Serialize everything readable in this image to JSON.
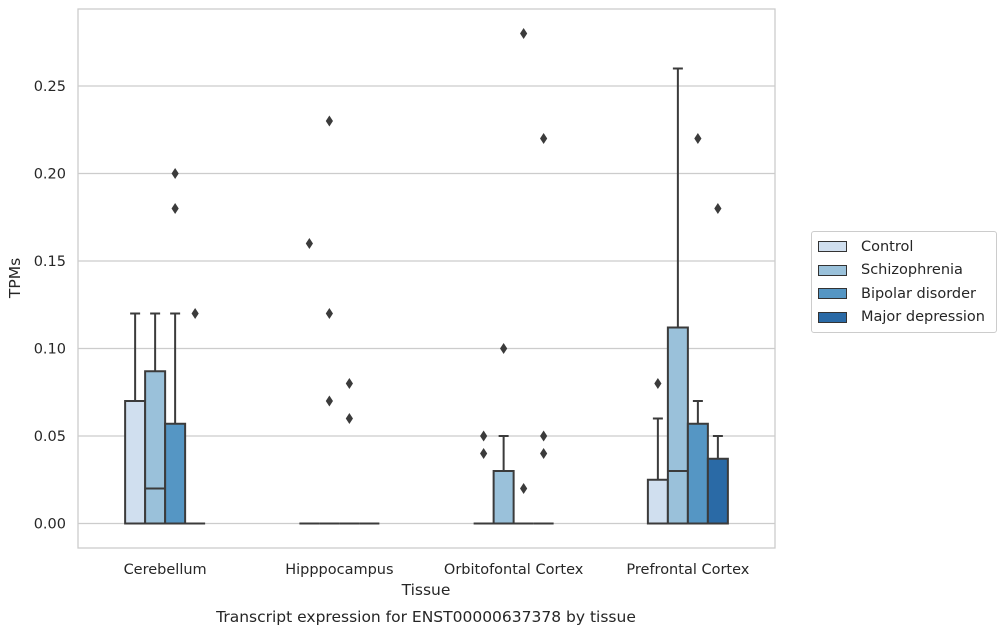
{
  "chart_data": {
    "type": "box",
    "caption": "Transcript expression for ENST00000637378 by tissue",
    "xlabel": "Tissue",
    "ylabel": "TPMs",
    "ylim": [
      -0.014,
      0.294
    ],
    "yticks": [
      0.0,
      0.05,
      0.1,
      0.15,
      0.2,
      0.25
    ],
    "ytick_labels": [
      "0.00",
      "0.05",
      "0.10",
      "0.15",
      "0.20",
      "0.25"
    ],
    "grid": true,
    "legend_position": "right",
    "categories": [
      "Cerebellum",
      "Hipppocampus",
      "Orbitofontal Cortex",
      "Prefrontal Cortex"
    ],
    "series": [
      {
        "name": "Control",
        "color": "#d0dfef",
        "boxes": [
          {
            "q1": 0.0,
            "median": 0.0,
            "q3": 0.07,
            "whisker_low": 0.0,
            "whisker_high": 0.12,
            "outliers": []
          },
          {
            "q1": 0.0,
            "median": 0.0,
            "q3": 0.0,
            "whisker_low": 0.0,
            "whisker_high": 0.0,
            "outliers": [
              0.16
            ]
          },
          {
            "q1": 0.0,
            "median": 0.0,
            "q3": 0.0,
            "whisker_low": 0.0,
            "whisker_high": 0.0,
            "outliers": [
              0.05,
              0.04
            ]
          },
          {
            "q1": 0.0,
            "median": 0.0,
            "q3": 0.025,
            "whisker_low": 0.0,
            "whisker_high": 0.06,
            "outliers": [
              0.08
            ]
          }
        ]
      },
      {
        "name": "Schizophrenia",
        "color": "#9ac1da",
        "boxes": [
          {
            "q1": 0.0,
            "median": 0.02,
            "q3": 0.087,
            "whisker_low": 0.0,
            "whisker_high": 0.12,
            "outliers": []
          },
          {
            "q1": 0.0,
            "median": 0.0,
            "q3": 0.0,
            "whisker_low": 0.0,
            "whisker_high": 0.0,
            "outliers": [
              0.23,
              0.12,
              0.07
            ]
          },
          {
            "q1": 0.0,
            "median": 0.0,
            "q3": 0.03,
            "whisker_low": 0.0,
            "whisker_high": 0.05,
            "outliers": [
              0.1
            ]
          },
          {
            "q1": 0.0,
            "median": 0.03,
            "q3": 0.112,
            "whisker_low": 0.0,
            "whisker_high": 0.26,
            "outliers": []
          }
        ]
      },
      {
        "name": "Bipolar disorder",
        "color": "#5596c4",
        "boxes": [
          {
            "q1": 0.0,
            "median": 0.0,
            "q3": 0.057,
            "whisker_low": 0.0,
            "whisker_high": 0.12,
            "outliers": [
              0.2,
              0.18
            ]
          },
          {
            "q1": 0.0,
            "median": 0.0,
            "q3": 0.0,
            "whisker_low": 0.0,
            "whisker_high": 0.0,
            "outliers": [
              0.08,
              0.06
            ]
          },
          {
            "q1": 0.0,
            "median": 0.0,
            "q3": 0.0,
            "whisker_low": 0.0,
            "whisker_high": 0.0,
            "outliers": [
              0.28,
              0.02
            ]
          },
          {
            "q1": 0.0,
            "median": 0.0,
            "q3": 0.057,
            "whisker_low": 0.0,
            "whisker_high": 0.07,
            "outliers": [
              0.22
            ]
          }
        ]
      },
      {
        "name": "Major depression",
        "color": "#2a6aa6",
        "boxes": [
          {
            "q1": 0.0,
            "median": 0.0,
            "q3": 0.0,
            "whisker_low": 0.0,
            "whisker_high": 0.0,
            "outliers": [
              0.12
            ]
          },
          {
            "q1": 0.0,
            "median": 0.0,
            "q3": 0.0,
            "whisker_low": 0.0,
            "whisker_high": 0.0,
            "outliers": []
          },
          {
            "q1": 0.0,
            "median": 0.0,
            "q3": 0.0,
            "whisker_low": 0.0,
            "whisker_high": 0.0,
            "outliers": [
              0.22,
              0.05,
              0.04
            ]
          },
          {
            "q1": 0.0,
            "median": 0.0,
            "q3": 0.037,
            "whisker_low": 0.0,
            "whisker_high": 0.05,
            "outliers": [
              0.18
            ]
          }
        ]
      }
    ]
  }
}
